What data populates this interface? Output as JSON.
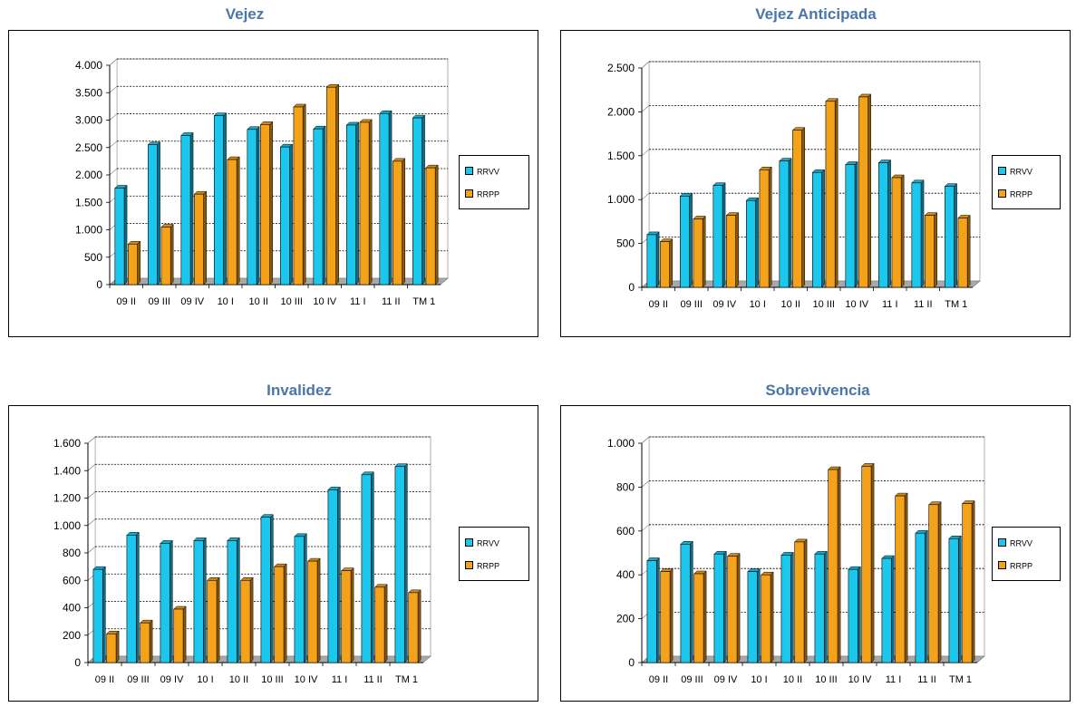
{
  "colors": {
    "RRVV": "#1cc7ee",
    "RRPP": "#f5a21b",
    "title": "#4a76a8"
  },
  "legend": [
    "RRVV",
    "RRPP"
  ],
  "chart_data": [
    {
      "type": "bar",
      "title": "Vejez",
      "categories": [
        "09 II",
        "09 III",
        "09 IV",
        "10 I",
        "10 II",
        "10 III",
        "10 IV",
        "11 I",
        "11 II",
        "TM 1"
      ],
      "ylim": [
        0,
        4000
      ],
      "yticks": [
        0,
        500,
        1000,
        1500,
        2000,
        2500,
        3000,
        3500,
        4000
      ],
      "ytick_labels": [
        "0",
        "500",
        "1.000",
        "1.500",
        "2.000",
        "2.500",
        "3.000",
        "3.500",
        "4.000"
      ],
      "series": [
        {
          "name": "RRVV",
          "values": [
            1760,
            2550,
            2720,
            3080,
            2830,
            2510,
            2840,
            2910,
            3120,
            3040
          ]
        },
        {
          "name": "RRPP",
          "values": [
            740,
            1050,
            1650,
            2280,
            2920,
            3240,
            3600,
            2960,
            2250,
            2130
          ]
        }
      ],
      "legend_position": "right",
      "grid": true
    },
    {
      "type": "bar",
      "title": "Vejez Anticipada",
      "categories": [
        "09 II",
        "09 III",
        "09 IV",
        "10 I",
        "10 II",
        "10 III",
        "10 IV",
        "11 I",
        "11 II",
        "TM 1"
      ],
      "ylim": [
        0,
        2500
      ],
      "yticks": [
        0,
        500,
        1000,
        1500,
        2000,
        2500
      ],
      "ytick_labels": [
        "0",
        "500",
        "1.000",
        "1.500",
        "2.000",
        "2.500"
      ],
      "series": [
        {
          "name": "RRVV",
          "values": [
            600,
            1040,
            1160,
            990,
            1440,
            1310,
            1400,
            1420,
            1190,
            1150
          ]
        },
        {
          "name": "RRPP",
          "values": [
            520,
            780,
            820,
            1340,
            1790,
            2120,
            2170,
            1250,
            820,
            790
          ]
        }
      ],
      "legend_position": "right",
      "grid": true
    },
    {
      "type": "bar",
      "title": "Invalidez",
      "categories": [
        "09 II",
        "09 III",
        "09 IV",
        "10 I",
        "10 II",
        "10 III",
        "10 IV",
        "11 I",
        "11 II",
        "TM 1"
      ],
      "ylim": [
        0,
        1600
      ],
      "yticks": [
        0,
        200,
        400,
        600,
        800,
        1000,
        1200,
        1400,
        1600
      ],
      "ytick_labels": [
        "0",
        "200",
        "400",
        "600",
        "800",
        "1.000",
        "1.200",
        "1.400",
        "1.600"
      ],
      "series": [
        {
          "name": "RRVV",
          "values": [
            680,
            930,
            870,
            890,
            890,
            1060,
            920,
            1260,
            1370,
            1430
          ]
        },
        {
          "name": "RRPP",
          "values": [
            210,
            290,
            390,
            600,
            600,
            700,
            740,
            670,
            550,
            510
          ]
        }
      ],
      "legend_position": "right",
      "grid": true
    },
    {
      "type": "bar",
      "title": "Sobrevivencia",
      "categories": [
        "09 II",
        "09 III",
        "09 IV",
        "10 I",
        "10 II",
        "10 III",
        "10 IV",
        "11 I",
        "11 II",
        "TM 1"
      ],
      "ylim": [
        0,
        1000
      ],
      "yticks": [
        0,
        200,
        400,
        600,
        800,
        1000
      ],
      "ytick_labels": [
        "0",
        "200",
        "400",
        "600",
        "800",
        "1.000"
      ],
      "series": [
        {
          "name": "RRVV",
          "values": [
            465,
            540,
            495,
            415,
            490,
            495,
            425,
            475,
            590,
            565
          ]
        },
        {
          "name": "RRPP",
          "values": [
            415,
            405,
            485,
            400,
            550,
            880,
            895,
            760,
            720,
            725
          ]
        }
      ],
      "legend_position": "right",
      "grid": true
    }
  ]
}
